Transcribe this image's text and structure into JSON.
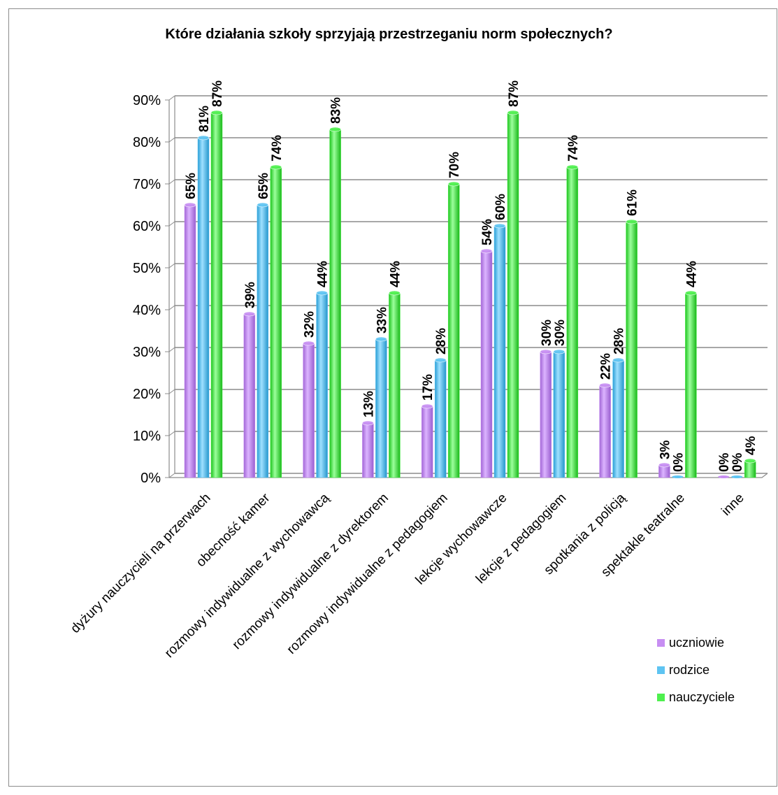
{
  "chart_data": {
    "type": "bar",
    "title": "Które działania szkoły sprzyjają przestrzeganiu norm społecznych?",
    "categories": [
      "dyżury nauczycieli na przerwach",
      "obecność kamer",
      "rozmowy indywidualne z wychowawcą",
      "rozmowy indywidualne z dyrektorem",
      "rozmowy indywidualne z pedagogiem",
      "lekcje wychowawcze",
      "lekcje z pedagogiem",
      "spotkania z policją",
      "spektakle teatralne",
      "inne"
    ],
    "series": [
      {
        "name": "uczniowie",
        "color": "#c78ef2",
        "values": [
          65,
          39,
          32,
          13,
          17,
          54,
          30,
          22,
          3,
          0
        ]
      },
      {
        "name": "rodzice",
        "color": "#5ec4f2",
        "values": [
          81,
          65,
          44,
          33,
          28,
          60,
          30,
          28,
          0,
          0
        ]
      },
      {
        "name": "nauczyciele",
        "color": "#4ef04e",
        "values": [
          87,
          74,
          83,
          44,
          70,
          87,
          74,
          61,
          44,
          4
        ]
      }
    ],
    "ylim": [
      0,
      90
    ],
    "yticks": [
      "0%",
      "10%",
      "20%",
      "30%",
      "40%",
      "50%",
      "60%",
      "70%",
      "80%",
      "90%"
    ],
    "value_suffix": "%",
    "grid": true,
    "legend": "right"
  }
}
